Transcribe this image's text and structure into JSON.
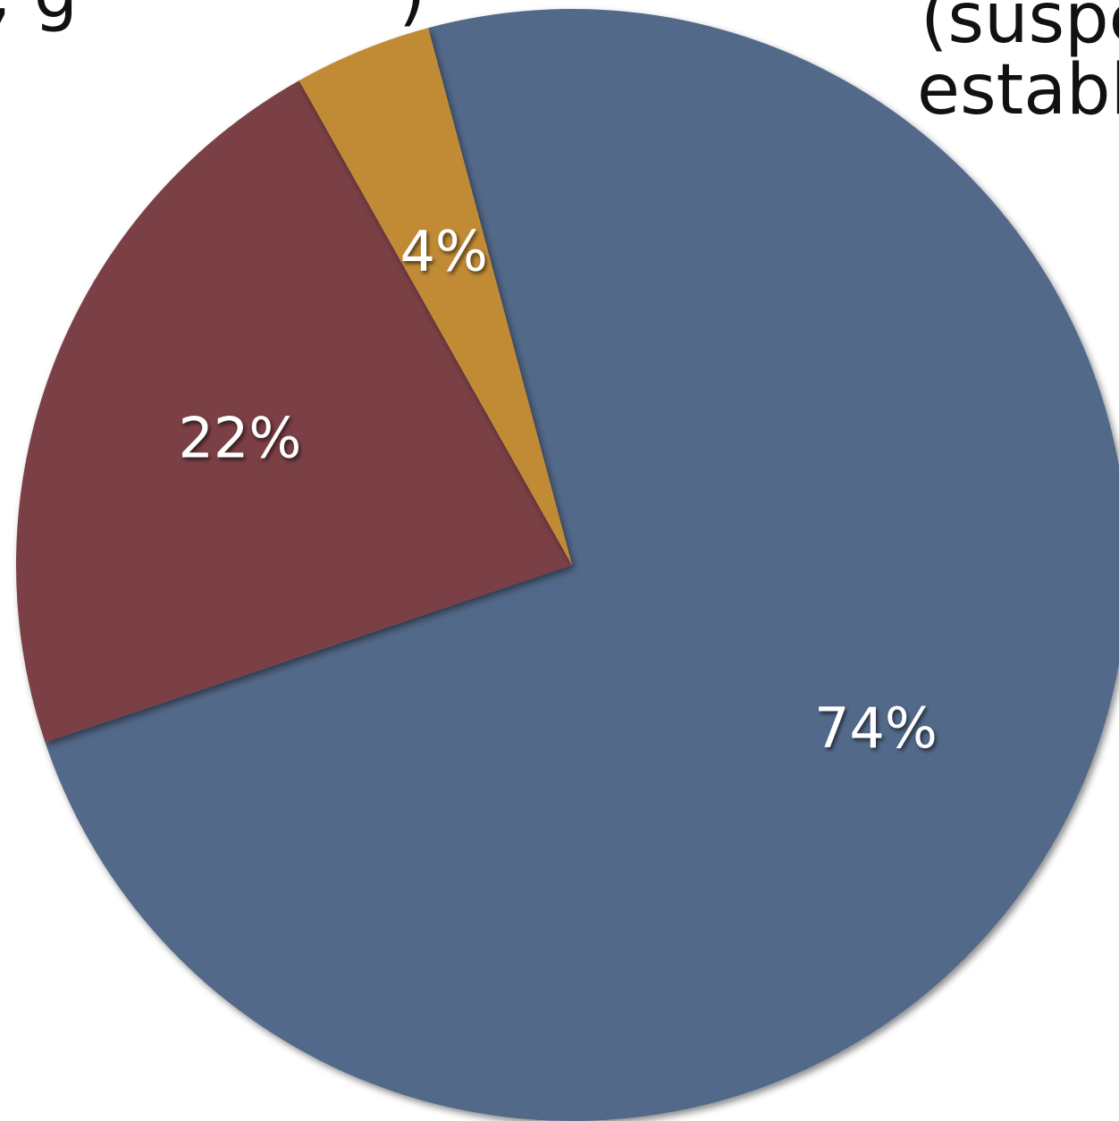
{
  "chart_data": {
    "type": "pie",
    "slices": [
      {
        "label": "74%",
        "value": 74,
        "color": "#52698a"
      },
      {
        "label": "22%",
        "value": 22,
        "color": "#7a3f44"
      },
      {
        "label": "4%",
        "value": 4,
        "color": "#c18b34"
      }
    ],
    "legend_fragments": [
      ", g",
      ")",
      "(suspe",
      "establi"
    ]
  }
}
